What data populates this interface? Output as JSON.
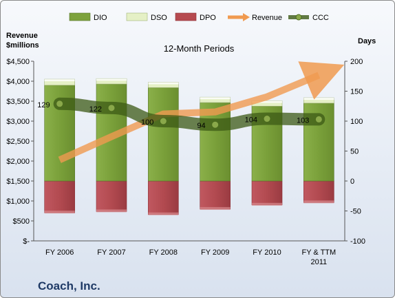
{
  "company": "Coach, Inc.",
  "colors": {
    "dio": "#7da23d",
    "dso": "#e5f0c6",
    "dpo": "#b64a50",
    "revenue": "#f09a50",
    "ccc": "#3c5a16"
  },
  "chart_data": {
    "type": "bar",
    "title": "12-Month Periods",
    "left_axis_title": [
      "Revenue",
      "$millions"
    ],
    "right_axis_title": "Days",
    "left_ticks": [
      "$-",
      "$500",
      "$1,000",
      "$1,500",
      "$2,000",
      "$2,500",
      "$3,000",
      "$3,500",
      "$4,000",
      "$4,500"
    ],
    "right_ticks": [
      "-100",
      "-50",
      "0",
      "50",
      "100",
      "150",
      "200"
    ],
    "left_ylim": [
      0,
      4500
    ],
    "right_ylim": [
      -100,
      200
    ],
    "categories": [
      [
        "FY 2006"
      ],
      [
        "FY 2007"
      ],
      [
        "FY 2008"
      ],
      [
        "FY 2009"
      ],
      [
        "FY 2010"
      ],
      [
        "FY & TTM",
        "2011"
      ]
    ],
    "legend": [
      "DIO",
      "DSO",
      "DPO",
      "Revenue",
      "CCC"
    ],
    "legend_position": "top",
    "series": [
      {
        "name": "DIO",
        "axis": "right",
        "values": [
          160,
          162,
          156,
          131,
          125,
          130
        ]
      },
      {
        "name": "DSO",
        "axis": "right",
        "values": [
          10,
          9,
          9,
          9,
          9,
          9
        ]
      },
      {
        "name": "DPO",
        "axis": "right",
        "values": [
          -53,
          -51,
          -56,
          -47,
          -40,
          -36
        ]
      },
      {
        "name": "Revenue",
        "axis": "left",
        "values": [
          2030,
          2610,
          3180,
          3230,
          3610,
          4150
        ]
      },
      {
        "name": "CCC",
        "axis": "right",
        "values": [
          129,
          122,
          100,
          94,
          104,
          103
        ]
      }
    ],
    "ccc_labels": [
      "129",
      "122",
      "100",
      "94",
      "104",
      "103"
    ],
    "grid": false
  }
}
